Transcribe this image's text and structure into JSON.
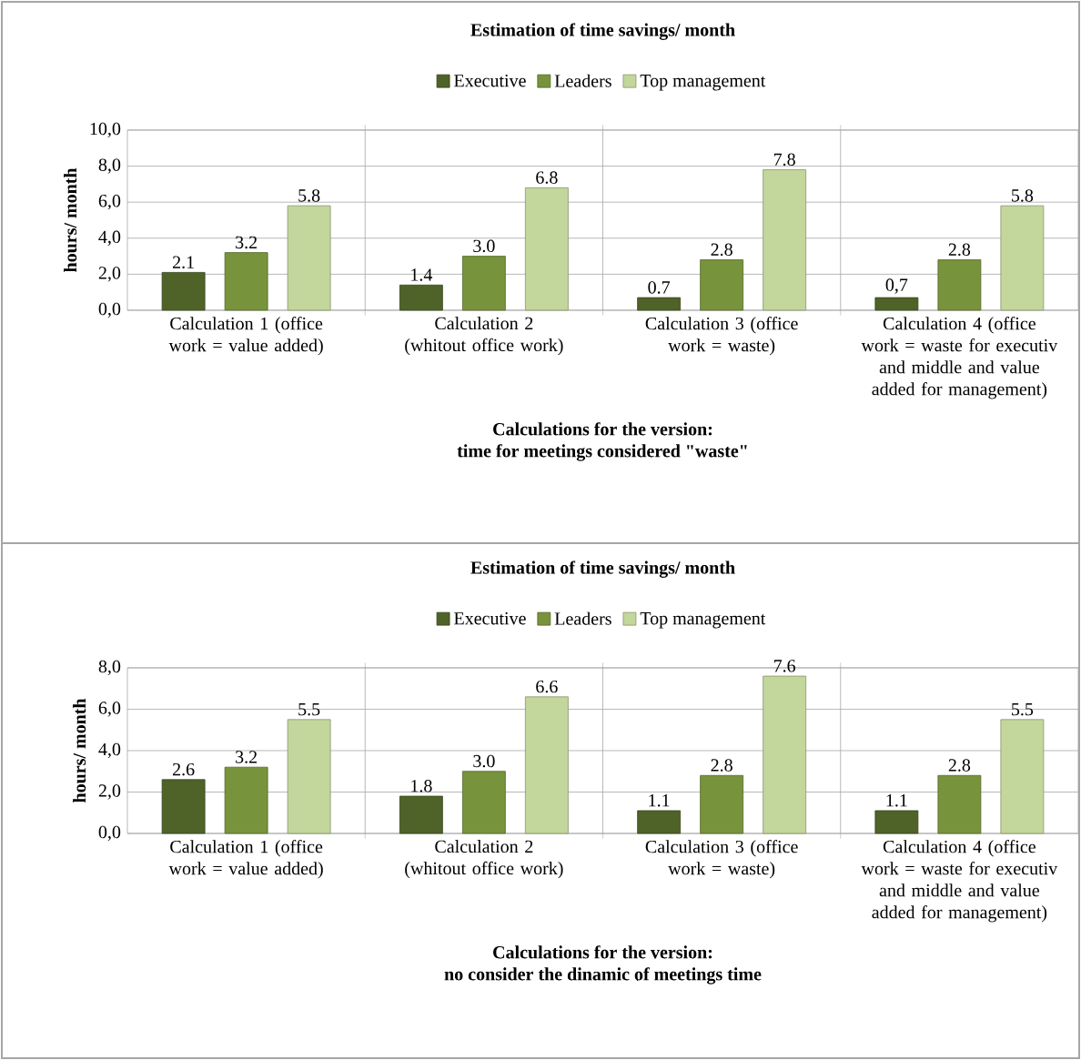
{
  "chart_data": [
    {
      "type": "bar",
      "title": "Estimation of time savings/ month",
      "xlabel": "Calculations for the version:\ntime for meetings considered \"waste\"",
      "ylabel": "hours/ month",
      "categories": [
        "Calculation 1 (office work  = value added)",
        "Calculation 2 (whitout office work)",
        "Calculation 3 (office work =  waste)",
        "Calculation 4 (office work = waste for executiv and middle  and value added for management)"
      ],
      "series": [
        {
          "name": "Executive",
          "color": "#4f6228",
          "values": [
            2.1,
            1.4,
            0.7,
            0.7
          ],
          "value_labels": [
            "2.1",
            "1.4",
            "0.7",
            "0,7"
          ]
        },
        {
          "name": "Leaders",
          "color": "#77933c",
          "values": [
            3.2,
            3.0,
            2.8,
            2.8
          ],
          "value_labels": [
            "3.2",
            "3.0",
            "2.8",
            "2.8"
          ]
        },
        {
          "name": "Top management",
          "color": "#c3d69b",
          "values": [
            5.8,
            6.8,
            7.8,
            5.8
          ],
          "value_labels": [
            "5.8",
            "6.8",
            "7.8",
            "5.8"
          ]
        }
      ],
      "ylim": [
        0,
        10
      ],
      "yticks": [
        {
          "value": 0,
          "label": "0,0"
        },
        {
          "value": 2,
          "label": "2,0"
        },
        {
          "value": 4,
          "label": "4,0"
        },
        {
          "value": 6,
          "label": "6,0"
        },
        {
          "value": 8,
          "label": "8,0"
        },
        {
          "value": 10,
          "label": "10,0"
        }
      ],
      "grid": true,
      "legend": "top"
    },
    {
      "type": "bar",
      "title": "Estimation of time savings/ month",
      "xlabel": "Calculations for the version:\nno consider the dinamic of  meetings time",
      "ylabel": "hours/ month",
      "categories": [
        "Calculation 1 (office work  = value added)",
        "Calculation 2 (whitout office work)",
        "Calculation 3 (office work =  waste)",
        "Calculation 4 (office work = waste for executiv and middle  and value added for management)"
      ],
      "series": [
        {
          "name": "Executive",
          "color": "#4f6228",
          "values": [
            2.6,
            1.8,
            1.1,
            1.1
          ],
          "value_labels": [
            "2.6",
            "1.8",
            "1.1",
            "1.1"
          ]
        },
        {
          "name": "Leaders",
          "color": "#77933c",
          "values": [
            3.2,
            3.0,
            2.8,
            2.8
          ],
          "value_labels": [
            "3.2",
            "3.0",
            "2.8",
            "2.8"
          ]
        },
        {
          "name": "Top management",
          "color": "#c3d69b",
          "values": [
            5.5,
            6.6,
            7.6,
            5.5
          ],
          "value_labels": [
            "5.5",
            "6.6",
            "7.6",
            "5.5"
          ]
        }
      ],
      "ylim": [
        0,
        8
      ],
      "yticks": [
        {
          "value": 0,
          "label": "0,0"
        },
        {
          "value": 2,
          "label": "2,0"
        },
        {
          "value": 4,
          "label": "4,0"
        },
        {
          "value": 6,
          "label": "6,0"
        },
        {
          "value": 8,
          "label": "8,0"
        }
      ],
      "grid": true,
      "legend": "top"
    }
  ]
}
